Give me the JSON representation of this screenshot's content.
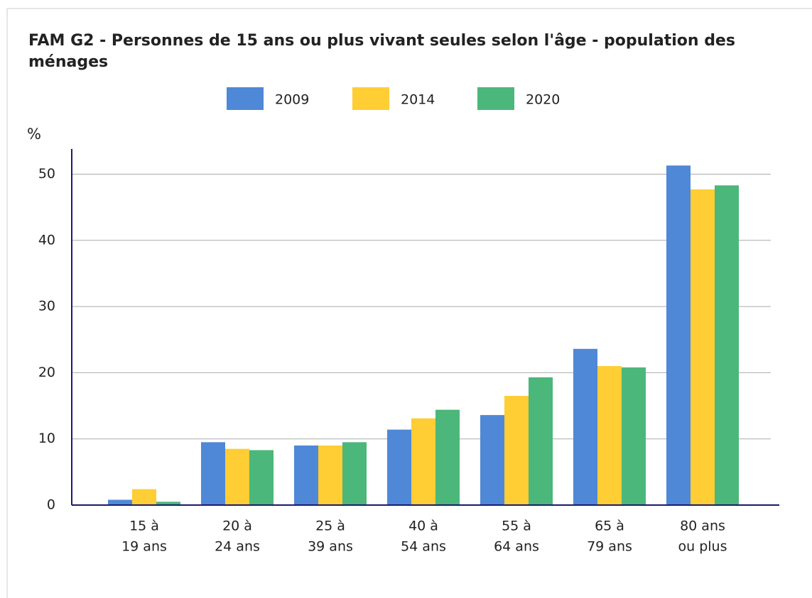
{
  "chart_data": {
    "type": "bar",
    "title": [
      "FAM G2 - Personnes de 15 ans ou plus vivant seules selon l'âge - population des",
      "ménages"
    ],
    "y_label": "%",
    "categories": [
      [
        "15 à",
        "19 ans"
      ],
      [
        "20 à",
        "24 ans"
      ],
      [
        "25 à",
        "39 ans"
      ],
      [
        "40 à",
        "54 ans"
      ],
      [
        "55 à",
        "64 ans"
      ],
      [
        "65 à",
        "79 ans"
      ],
      [
        "80 ans",
        "ou plus"
      ]
    ],
    "series": [
      {
        "name": "2009",
        "color": "#4f88d6",
        "values": [
          0.8,
          9.5,
          9.0,
          11.4,
          13.6,
          23.6,
          51.3
        ]
      },
      {
        "name": "2014",
        "color": "#ffcd34",
        "values": [
          2.4,
          8.5,
          9.0,
          13.1,
          16.5,
          21.0,
          47.7
        ]
      },
      {
        "name": "2020",
        "color": "#4bb77a",
        "values": [
          0.5,
          8.3,
          9.5,
          14.4,
          19.3,
          20.8,
          48.3
        ]
      }
    ],
    "ylim": [
      0,
      53.8
    ],
    "yticks": [
      0,
      10,
      20,
      30,
      40,
      50
    ],
    "grid": true
  }
}
